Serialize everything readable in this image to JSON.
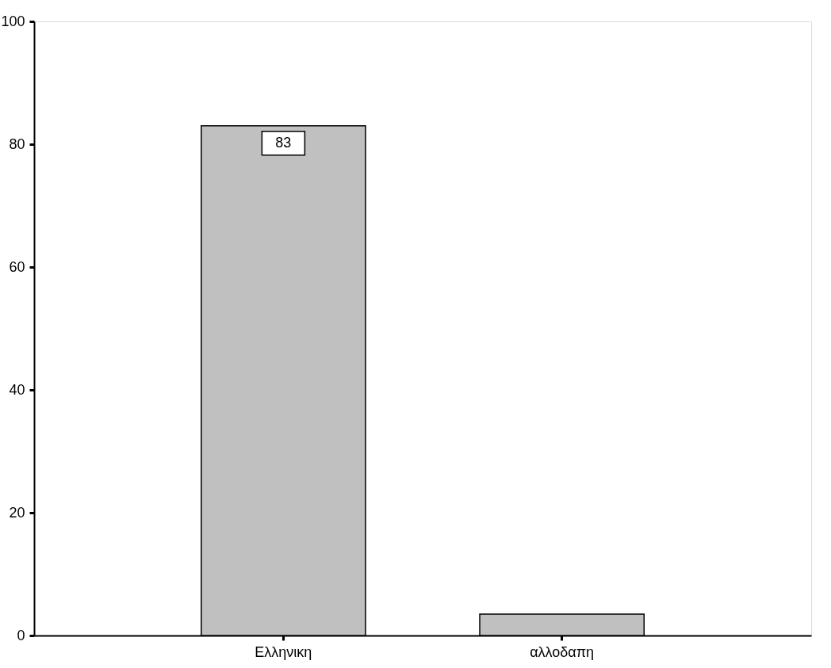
{
  "chart_data": {
    "type": "bar",
    "categories": [
      "Ελληνικη",
      "αλλοδαπη"
    ],
    "values": [
      83,
      3.5
    ],
    "value_labels": [
      "83",
      null
    ],
    "color": "#c0c0c0",
    "ylim": [
      0,
      100
    ],
    "yticks": [
      0,
      20,
      40,
      60,
      80,
      100
    ],
    "grid": false
  }
}
